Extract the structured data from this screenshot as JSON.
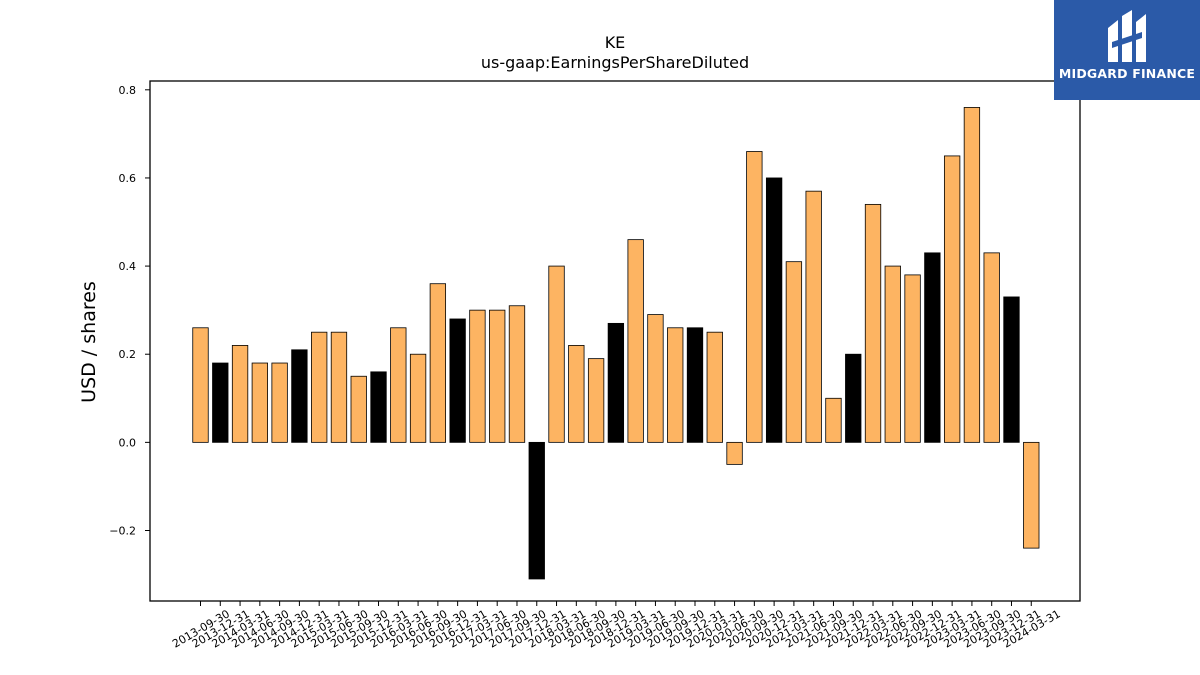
{
  "chart_data": {
    "type": "bar",
    "title": "KE",
    "subtitle": "us-gaap:EarningsPerShareDiluted",
    "xlabel": "",
    "ylabel": "USD / shares",
    "ylim": [
      -0.36,
      0.82
    ],
    "yticks": [
      -0.2,
      0.0,
      0.2,
      0.4,
      0.6,
      0.8
    ],
    "ytick_labels": [
      "−0.2",
      "0.0",
      "0.2",
      "0.4",
      "0.6",
      "0.8"
    ],
    "grid": false,
    "colors": {
      "quarter": "#fdb462",
      "fiscal_year_end": "#000000",
      "edge": "#000000"
    },
    "categories": [
      "2013-09-30",
      "2013-12-31",
      "2014-03-31",
      "2014-06-30",
      "2014-09-30",
      "2014-12-31",
      "2015-03-31",
      "2015-06-30",
      "2015-09-30",
      "2015-12-31",
      "2016-03-31",
      "2016-06-30",
      "2016-09-30",
      "2016-12-31",
      "2017-03-31",
      "2017-06-30",
      "2017-09-30",
      "2017-12-31",
      "2018-03-31",
      "2018-06-30",
      "2018-09-30",
      "2018-12-31",
      "2019-03-31",
      "2019-06-30",
      "2019-09-30",
      "2019-12-31",
      "2020-03-31",
      "2020-06-30",
      "2020-09-30",
      "2020-12-31",
      "2021-03-31",
      "2021-06-30",
      "2021-09-30",
      "2021-12-31",
      "2022-03-31",
      "2022-06-30",
      "2022-09-30",
      "2022-12-31",
      "2023-03-31",
      "2023-06-30",
      "2023-09-30",
      "2023-12-31",
      "2024-03-31"
    ],
    "values": [
      0.26,
      0.18,
      0.22,
      0.18,
      0.18,
      0.21,
      0.25,
      0.25,
      0.15,
      0.16,
      0.26,
      0.2,
      0.36,
      0.28,
      0.3,
      0.3,
      0.31,
      -0.31,
      0.4,
      0.22,
      0.19,
      0.27,
      0.46,
      0.29,
      0.26,
      0.26,
      0.25,
      -0.05,
      0.66,
      0.6,
      0.41,
      0.57,
      0.1,
      0.2,
      0.54,
      0.4,
      0.38,
      0.43,
      0.65,
      0.76,
      0.43,
      0.33,
      -0.24
    ],
    "highlight": [
      false,
      true,
      false,
      false,
      false,
      true,
      false,
      false,
      false,
      true,
      false,
      false,
      false,
      true,
      false,
      false,
      false,
      true,
      false,
      false,
      false,
      true,
      false,
      false,
      false,
      true,
      false,
      false,
      false,
      true,
      false,
      false,
      false,
      true,
      false,
      false,
      false,
      true,
      false,
      false,
      false,
      true,
      false
    ]
  },
  "logo": {
    "text": "MIDGARD FINANCE",
    "icon": "midgard-logo-icon",
    "background": "#2b5aa8"
  }
}
